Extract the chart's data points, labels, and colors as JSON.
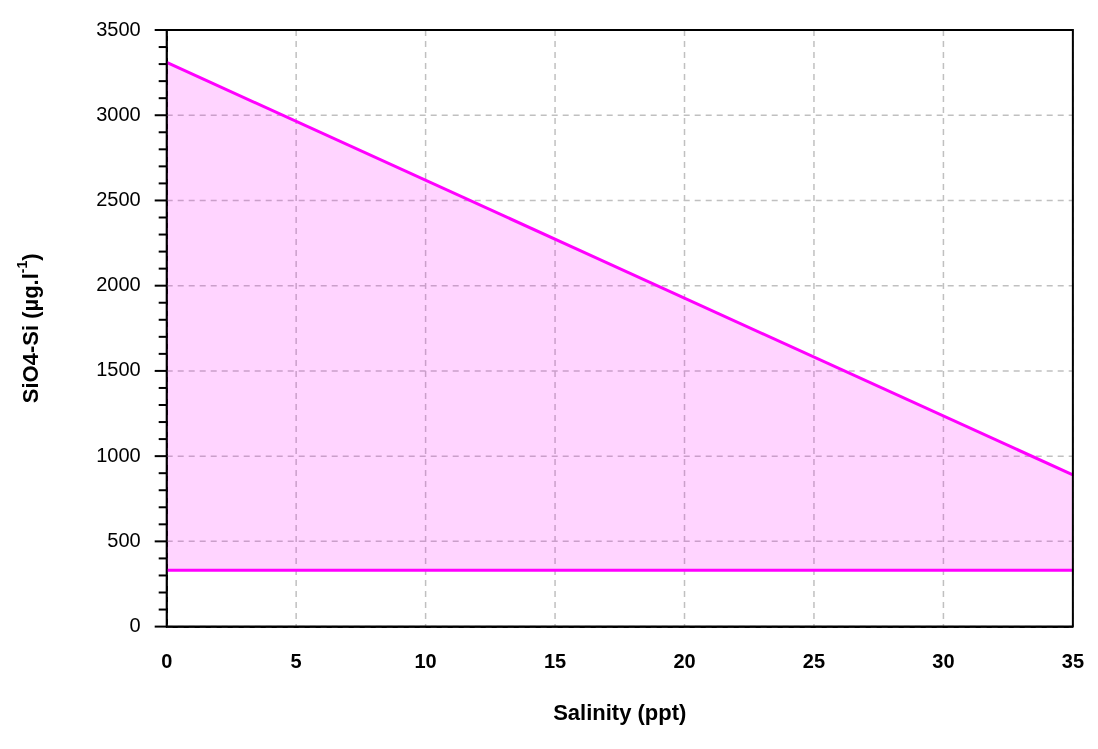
{
  "chart_data": {
    "type": "line",
    "xlabel": "Salinity (ppt)",
    "ylabel": "SiO4-Si (µg.l$^{-1}$)",
    "series": [
      {
        "type": "line",
        "color": "#ff00ff",
        "values": [
          330,
          330
        ]
      },
      {
        "type": "area",
        "color": "#ff00ff",
        "values": [
          3310,
          890
        ]
      }
    ],
    "x": [
      0,
      35
    ],
    "xlim": [
      0,
      35
    ],
    "xticks": [
      0,
      5,
      10,
      15,
      20,
      25,
      30,
      35
    ],
    "ylim": [
      0,
      3500
    ],
    "yticks": [
      0,
      {
        "value": 100,
        "label": null
      },
      {
        "value": 200,
        "label": null
      },
      {
        "value": 300,
        "label": null
      },
      {
        "value": 400,
        "label": null
      },
      500,
      {
        "value": 600,
        "label": null
      },
      {
        "value": 700,
        "label": null
      },
      {
        "value": 800,
        "label": null
      },
      {
        "value": 900,
        "label": null
      },
      1000,
      {
        "value": 1100,
        "label": null
      },
      {
        "value": 1200,
        "label": null
      },
      {
        "value": 1300,
        "label": null
      },
      {
        "value": 1400,
        "label": null
      },
      1500,
      {
        "value": 1600,
        "label": null
      },
      {
        "value": 1700,
        "label": null
      },
      {
        "value": 1800,
        "label": null
      },
      {
        "value": 1900,
        "label": null
      },
      2000,
      {
        "value": 2100,
        "label": null
      },
      {
        "value": 2200,
        "label": null
      },
      {
        "value": 2300,
        "label": null
      },
      {
        "value": 2400,
        "label": null
      },
      2500,
      {
        "value": 2600,
        "label": null
      },
      {
        "value": 2700,
        "label": null
      },
      {
        "value": 2800,
        "label": null
      },
      {
        "value": 2900,
        "label": null
      },
      3000,
      {
        "value": 3100,
        "label": null
      },
      {
        "value": 3200,
        "label": null
      },
      {
        "value": 3300,
        "label": null
      },
      {
        "value": 3400,
        "label": null
      },
      3500
    ],
    "grid": true,
    "legend": false,
    "marker": "none",
    "line_style": "solid"
  }
}
